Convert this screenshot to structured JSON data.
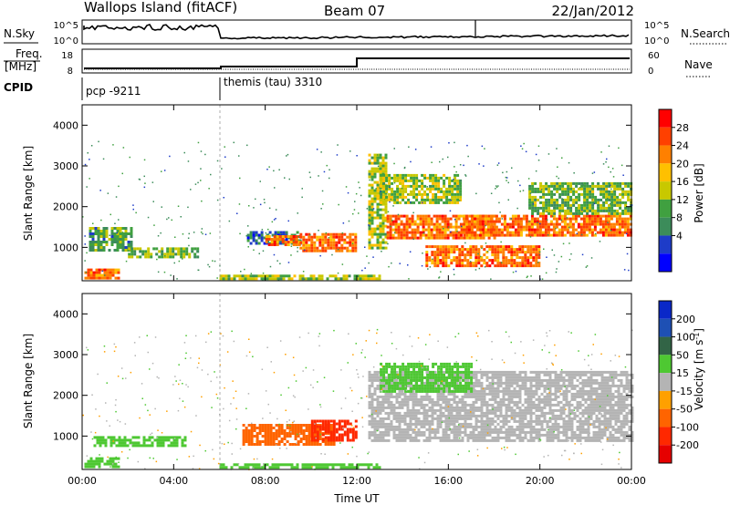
{
  "header": {
    "station": "Wallops Island (fitACF)",
    "beam": "Beam 07",
    "date": "22/Jan/2012"
  },
  "summary_panels": {
    "nsky_label": "N.Sky",
    "nsearch_label": "N.Search",
    "noise_ticks": [
      "10^5",
      "10^0"
    ],
    "freq_label_1": "Freq.",
    "freq_label_2": "[MHz]",
    "freq_ticks": [
      "18",
      "8"
    ],
    "nave_label": "Nave",
    "nave_ticks": [
      "60",
      "0"
    ],
    "cpid_label": "CPID",
    "cpid_segments": [
      {
        "name": "pcp -9211",
        "start_hour": 0,
        "end_hour": 6
      },
      {
        "name": "themis (tau) 3310",
        "start_hour": 6,
        "end_hour": 24
      }
    ]
  },
  "chart_data": [
    {
      "type": "heatmap",
      "title": "",
      "quantity": "Power",
      "ylabel": "Slant Range [km]",
      "xlabel": "",
      "x_range_hours": [
        0,
        24
      ],
      "ylim": [
        180,
        4500
      ],
      "y_ticks": [
        "1000",
        "2000",
        "3000",
        "4000"
      ],
      "x_ticks": [
        "00:00",
        "04:00",
        "08:00",
        "12:00",
        "16:00",
        "20:00",
        "00:00"
      ],
      "colorbar": {
        "label": "Power [dB]",
        "ticks": [
          "28",
          "24",
          "20",
          "16",
          "12",
          "8",
          "4"
        ],
        "colors": [
          "#ff0000",
          "#ff4000",
          "#ff8000",
          "#ffc000",
          "#c8c800",
          "#40a040",
          "#3c8c5a",
          "#1e3cc8",
          "#0000ff"
        ]
      },
      "echo_regions": [
        {
          "t0": 0.1,
          "t1": 1.6,
          "r0": 260,
          "r1": 480,
          "level": 24
        },
        {
          "t0": 0.3,
          "t1": 2.2,
          "r0": 900,
          "r1": 1500,
          "level": 10
        },
        {
          "t0": 2.0,
          "t1": 5.0,
          "r0": 750,
          "r1": 1000,
          "level": 12
        },
        {
          "t0": 6.0,
          "t1": 13.0,
          "r0": 230,
          "r1": 330,
          "level": 14
        },
        {
          "t0": 7.2,
          "t1": 9.5,
          "r0": 1100,
          "r1": 1400,
          "level": 6
        },
        {
          "t0": 8.0,
          "t1": 9.5,
          "r0": 1050,
          "r1": 1300,
          "level": 24
        },
        {
          "t0": 9.5,
          "t1": 12.0,
          "r0": 900,
          "r1": 1350,
          "level": 24
        },
        {
          "t0": 12.5,
          "t1": 13.3,
          "r0": 1000,
          "r1": 3300,
          "level": 14
        },
        {
          "t0": 13.0,
          "t1": 16.5,
          "r0": 2100,
          "r1": 2800,
          "level": 14
        },
        {
          "t0": 13.3,
          "t1": 18.0,
          "r0": 1200,
          "r1": 1800,
          "level": 24
        },
        {
          "t0": 15.0,
          "t1": 20.0,
          "r0": 550,
          "r1": 1050,
          "level": 24
        },
        {
          "t0": 16.5,
          "t1": 24.0,
          "r0": 1300,
          "r1": 1800,
          "level": 24
        },
        {
          "t0": 19.5,
          "t1": 24.0,
          "r0": 1800,
          "r1": 2600,
          "level": 12
        }
      ]
    },
    {
      "type": "heatmap",
      "title": "",
      "quantity": "Velocity",
      "ylabel": "Slant Range [km]",
      "xlabel": "Time UT",
      "x_range_hours": [
        0,
        24
      ],
      "ylim": [
        180,
        4500
      ],
      "y_ticks": [
        "1000",
        "2000",
        "3000",
        "4000"
      ],
      "x_ticks": [
        "00:00",
        "04:00",
        "08:00",
        "12:00",
        "16:00",
        "20:00",
        "00:00"
      ],
      "colorbar": {
        "label": "Velocity [m s^-1]",
        "ticks": [
          "200",
          "100",
          "50",
          "15",
          "-15",
          "-50",
          "-100",
          "-200"
        ],
        "colors": [
          "#0a28c8",
          "#1e50b4",
          "#326446",
          "#4ec832",
          "#b4b4b4",
          "#ffa000",
          "#ff6400",
          "#ff2800",
          "#e60000"
        ]
      },
      "echo_regions": [
        {
          "t0": 0.1,
          "t1": 1.6,
          "r0": 260,
          "r1": 480,
          "level": 30
        },
        {
          "t0": 0.5,
          "t1": 4.5,
          "r0": 750,
          "r1": 1000,
          "level": 40
        },
        {
          "t0": 6.0,
          "t1": 13.0,
          "r0": 230,
          "r1": 330,
          "level": 30
        },
        {
          "t0": 7.0,
          "t1": 11.0,
          "r0": 800,
          "r1": 1300,
          "level": -60
        },
        {
          "t0": 10.0,
          "t1": 12.0,
          "r0": 900,
          "r1": 1400,
          "level": -150
        },
        {
          "t0": 12.5,
          "t1": 24.0,
          "r0": 900,
          "r1": 2600,
          "level": 0
        },
        {
          "t0": 13.0,
          "t1": 17.0,
          "r0": 2100,
          "r1": 2800,
          "level": 30
        }
      ]
    }
  ]
}
